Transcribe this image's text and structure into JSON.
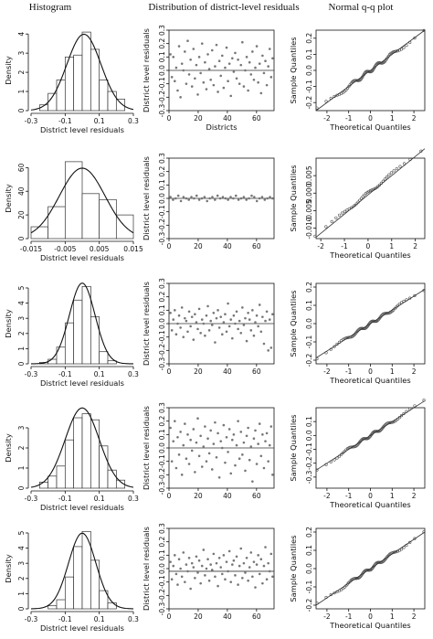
{
  "headers": [
    "Histogram",
    "Distribution of district-level residuals",
    "Normal q-q plot"
  ],
  "chart_data": [
    {
      "type": "bar",
      "panel": "histogram",
      "row": 1,
      "xlabel": "District level residuals",
      "ylabel": "Density",
      "xlim": [
        -0.3,
        0.3
      ],
      "ylim": [
        0,
        4.2
      ],
      "xticks": [
        -0.3,
        -0.1,
        0.1,
        0.3
      ],
      "xtick_labels": [
        "-0.3",
        "-0.1",
        "0.1",
        "0.3"
      ],
      "yticks": [
        0,
        1,
        2,
        3,
        4
      ],
      "bin_edges": [
        -0.25,
        -0.2,
        -0.15,
        -0.1,
        -0.05,
        0.0,
        0.05,
        0.1,
        0.15,
        0.2,
        0.25
      ],
      "values": [
        0.3,
        0.9,
        1.6,
        2.8,
        2.9,
        4.1,
        3.2,
        1.6,
        1.0,
        0.6
      ],
      "curve": {
        "mean": 0.01,
        "sd": 0.1
      }
    },
    {
      "type": "scatter",
      "panel": "residuals",
      "row": 1,
      "xlabel": "Districts",
      "ylabel": "District level residuals",
      "xlim": [
        0,
        72
      ],
      "ylim": [
        -0.3,
        0.3
      ],
      "xticks": [
        0,
        20,
        40,
        60
      ],
      "yticks": [
        -0.3,
        -0.2,
        -0.1,
        0.0,
        0.1,
        0.2,
        0.3
      ],
      "ytick_labels": [
        "-0.3",
        "-0.2",
        "-0.1",
        "0.0",
        "0.1",
        "0.2",
        "0.3"
      ],
      "hline": 0.0,
      "y": [
        0.12,
        -0.05,
        0.1,
        -0.08,
        0.02,
        -0.15,
        0.18,
        -0.2,
        0.05,
        0.0,
        0.14,
        -0.1,
        0.22,
        -0.03,
        0.08,
        -0.12,
        0.16,
        -0.06,
        0.04,
        -0.18,
        0.1,
        -0.02,
        0.2,
        -0.09,
        0.06,
        -0.14,
        0.12,
        0.01,
        -0.07,
        0.15,
        -0.11,
        0.03,
        0.19,
        -0.16,
        0.07,
        -0.04,
        0.11,
        -0.13,
        0.02,
        0.17,
        -0.08,
        0.05,
        -0.19,
        0.09,
        -0.01,
        0.13,
        -0.06,
        0.08,
        -0.1,
        0.04,
        0.21,
        -0.12,
        0.0,
        0.1,
        -0.15,
        0.06,
        -0.03,
        0.14,
        -0.07,
        0.02,
        0.18,
        -0.09,
        0.05,
        -0.17,
        0.11,
        -0.02,
        0.07,
        -0.11,
        0.03,
        0.16,
        -0.05,
        0.09
      ]
    },
    {
      "type": "scatter",
      "panel": "qq",
      "row": 1,
      "xlabel": "Theoretical Quantiles",
      "ylabel": "Sample Quantiles",
      "xlim": [
        -2.5,
        2.5
      ],
      "ylim": [
        -0.25,
        0.25
      ],
      "xticks": [
        -2,
        -1,
        0,
        1,
        2
      ],
      "yticks": [
        -0.2,
        -0.1,
        0.0,
        0.1,
        0.2
      ],
      "ytick_labels": [
        "-0.2",
        "-0.1",
        "0.0",
        "0.1",
        "0.2"
      ],
      "points": {
        "n": 72,
        "mean": 0.0,
        "sd": 0.1,
        "jitter": 0.012
      },
      "line": {
        "intercept": 0.0,
        "slope": 0.1
      }
    },
    {
      "type": "bar",
      "panel": "histogram",
      "row": 2,
      "xlabel": "District level residuals",
      "ylabel": "Density",
      "xlim": [
        -0.015,
        0.015
      ],
      "ylim": [
        0,
        68
      ],
      "xticks": [
        -0.015,
        -0.005,
        0.005,
        0.015
      ],
      "xtick_labels": [
        "-0.015",
        "-0.005",
        "0.005",
        "0.015"
      ],
      "yticks": [
        0,
        20,
        40,
        60
      ],
      "bin_edges": [
        -0.015,
        -0.01,
        -0.005,
        0.0,
        0.005,
        0.01,
        0.015
      ],
      "values": [
        10,
        27,
        65,
        38,
        33,
        20
      ],
      "curve": {
        "mean": 0.0,
        "sd": 0.0067
      }
    },
    {
      "type": "scatter",
      "panel": "residuals",
      "row": 2,
      "xlabel": "",
      "ylabel": "District level residuals",
      "xlim": [
        0,
        72
      ],
      "ylim": [
        -0.3,
        0.3
      ],
      "xticks": [
        0,
        20,
        40,
        60
      ],
      "yticks": [
        -0.3,
        -0.2,
        -0.1,
        0.0,
        0.1,
        0.2,
        0.3
      ],
      "ytick_labels": [
        "-0.3",
        "-0.2",
        "-0.1",
        "0.0",
        "0.1",
        "0.2",
        "0.3"
      ],
      "hline": 0.0,
      "y": [
        0.01,
        -0.01,
        0.0,
        0.02,
        -0.02,
        0.01,
        0.0,
        -0.01,
        0.01,
        0.0,
        0.02,
        -0.01,
        0.0,
        0.01,
        -0.02,
        0.0,
        0.01,
        -0.01,
        0.02,
        0.0,
        0.01,
        0.0,
        -0.01,
        0.01,
        0.0,
        0.02,
        -0.01,
        0.0,
        0.01,
        -0.01,
        0.0,
        0.02,
        0.01,
        -0.02,
        0.0,
        0.01,
        -0.01,
        0.0,
        0.01,
        0.0
      ]
    },
    {
      "type": "scatter",
      "panel": "qq",
      "row": 2,
      "xlabel": "Theoretical Quantiles",
      "ylabel": "Sample Quantiles",
      "xlim": [
        -2.2,
        2.4
      ],
      "ylim": [
        -0.013,
        0.01
      ],
      "xticks": [
        -2,
        -1,
        0,
        1,
        2
      ],
      "yticks": [
        -0.01,
        -0.005,
        0.0,
        0.005
      ],
      "ytick_labels": [
        "-0.010",
        "-0.005",
        "0.000",
        "0.005"
      ],
      "points": {
        "n": 40,
        "mean": 0.0,
        "sd": 0.0055,
        "jitter": 0.0004
      },
      "line": {
        "intercept": -0.0005,
        "slope": 0.0055
      }
    },
    {
      "type": "bar",
      "panel": "histogram",
      "row": 3,
      "xlabel": "District level residuals",
      "ylabel": "Density",
      "xlim": [
        -0.3,
        0.3
      ],
      "ylim": [
        0,
        5.3
      ],
      "xticks": [
        -0.3,
        -0.1,
        0.1,
        0.3
      ],
      "xtick_labels": [
        "-0.3",
        "-0.1",
        "0.1",
        "0.3"
      ],
      "yticks": [
        0,
        1,
        2,
        3,
        4,
        5
      ],
      "bin_edges": [
        -0.25,
        -0.2,
        -0.15,
        -0.1,
        -0.05,
        0.0,
        0.05,
        0.1,
        0.15,
        0.2
      ],
      "values": [
        0.1,
        0.3,
        1.1,
        2.7,
        4.2,
        5.1,
        3.1,
        0.8,
        0.2
      ],
      "curve": {
        "mean": 0.0,
        "sd": 0.075
      }
    },
    {
      "type": "scatter",
      "panel": "residuals",
      "row": 3,
      "xlabel": "",
      "ylabel": "District level residuals",
      "xlim": [
        0,
        72
      ],
      "ylim": [
        -0.3,
        0.3
      ],
      "xticks": [
        0,
        20,
        40,
        60
      ],
      "yticks": [
        -0.3,
        -0.2,
        -0.1,
        0.0,
        0.1,
        0.2,
        0.3
      ],
      "ytick_labels": [
        "-0.3",
        "-0.2",
        "-0.1",
        "0.0",
        "0.1",
        "0.2",
        "0.3"
      ],
      "hline": 0.0,
      "y": [
        0.08,
        -0.05,
        0.03,
        0.1,
        -0.08,
        0.0,
        0.06,
        -0.03,
        0.12,
        -0.1,
        0.04,
        0.02,
        -0.06,
        0.09,
        -0.02,
        0.05,
        -0.12,
        0.07,
        0.01,
        -0.04,
        0.11,
        -0.07,
        0.03,
        0.0,
        -0.09,
        0.06,
        0.13,
        -0.05,
        0.02,
        -0.01,
        0.08,
        -0.14,
        0.04,
        0.1,
        -0.03,
        0.05,
        -0.08,
        0.01,
        0.07,
        -0.06,
        0.15,
        -0.02,
        0.03,
        -0.11,
        0.06,
        0.0,
        0.09,
        -0.04,
        0.02,
        -0.07,
        0.12,
        -0.01,
        0.04,
        -0.13,
        0.08,
        0.03,
        -0.05,
        0.1,
        -0.09,
        0.01,
        0.06,
        -0.02,
        0.14,
        -0.06,
        0.05,
        -0.15,
        0.02,
        0.09,
        -0.2,
        0.03,
        -0.18,
        0.07
      ]
    },
    {
      "type": "scatter",
      "panel": "qq",
      "row": 3,
      "xlabel": "Theoretical Quantiles",
      "ylabel": "Sample Quantiles",
      "xlim": [
        -2.5,
        2.5
      ],
      "ylim": [
        -0.22,
        0.22
      ],
      "xticks": [
        -2,
        -1,
        0,
        1,
        2
      ],
      "yticks": [
        -0.2,
        -0.1,
        0.0,
        0.1,
        0.2
      ],
      "ytick_labels": [
        "-0.2",
        "-0.1",
        "0.0",
        "0.1",
        "0.2"
      ],
      "points": {
        "n": 72,
        "mean": 0.0,
        "sd": 0.075,
        "jitter": 0.008
      },
      "line": {
        "intercept": 0.0,
        "slope": 0.075
      }
    },
    {
      "type": "bar",
      "panel": "histogram",
      "row": 4,
      "xlabel": "District level residuals",
      "ylabel": "Density",
      "xlim": [
        -0.3,
        0.3
      ],
      "ylim": [
        0,
        4.0
      ],
      "xticks": [
        -0.3,
        -0.1,
        0.1,
        0.3
      ],
      "xtick_labels": [
        "-0.3",
        "-0.1",
        "0.1",
        "0.3"
      ],
      "yticks": [
        0,
        1,
        2,
        3
      ],
      "bin_edges": [
        -0.25,
        -0.2,
        -0.15,
        -0.1,
        -0.05,
        0.0,
        0.05,
        0.1,
        0.15,
        0.2,
        0.25
      ],
      "values": [
        0.3,
        0.6,
        1.1,
        2.4,
        3.5,
        3.7,
        3.4,
        2.1,
        0.9,
        0.4
      ],
      "curve": {
        "mean": 0.0,
        "sd": 0.1
      }
    },
    {
      "type": "scatter",
      "panel": "residuals",
      "row": 4,
      "xlabel": "",
      "ylabel": "District level residuals",
      "xlim": [
        0,
        72
      ],
      "ylim": [
        -0.3,
        0.3
      ],
      "xticks": [
        0,
        20,
        40,
        60
      ],
      "yticks": [
        -0.3,
        -0.2,
        -0.1,
        0.0,
        0.1,
        0.2,
        0.3
      ],
      "ytick_labels": [
        "-0.3",
        "-0.2",
        "-0.1",
        "0.0",
        "0.1",
        "0.2",
        "0.3"
      ],
      "hline": 0.0,
      "y": [
        0.15,
        -0.1,
        0.05,
        0.2,
        -0.15,
        0.08,
        -0.05,
        0.12,
        -0.2,
        0.02,
        0.18,
        -0.08,
        0.1,
        -0.12,
        0.06,
        -0.02,
        0.14,
        -0.18,
        0.04,
        0.22,
        -0.06,
        0.09,
        -0.14,
        0.01,
        0.16,
        -0.1,
        0.07,
        -0.04,
        0.13,
        -0.16,
        0.03,
        0.19,
        -0.07,
        0.11,
        -0.22,
        0.05,
        0.0,
        0.17,
        -0.11,
        0.08,
        -0.03,
        0.14,
        -0.19,
        0.06,
        0.1,
        -0.13,
        0.02,
        0.2,
        -0.08,
        0.12,
        -0.05,
        0.04,
        -0.17,
        0.09,
        0.15,
        -0.09,
        0.01,
        -0.25,
        0.07,
        0.13,
        -0.12,
        0.03,
        0.18,
        -0.06,
        0.1,
        -0.15,
        0.05,
        0.11,
        -0.1,
        0.02,
        0.16,
        -0.2
      ]
    },
    {
      "type": "scatter",
      "panel": "qq",
      "row": 4,
      "xlabel": "Theoretical Quantiles",
      "ylabel": "Sample Quantiles",
      "xlim": [
        -2.5,
        2.5
      ],
      "ylim": [
        -0.38,
        0.2
      ],
      "xticks": [
        -2,
        -1,
        0,
        1,
        2
      ],
      "yticks": [
        -0.3,
        -0.2,
        -0.1,
        0.0,
        0.1
      ],
      "ytick_labels": [
        "-0.3",
        "-0.2",
        "-0.1",
        "0.0",
        "0.1"
      ],
      "points": {
        "n": 72,
        "mean": 0.0,
        "sd": 0.1,
        "jitter": 0.01
      },
      "line": {
        "intercept": 0.0,
        "slope": 0.1
      }
    },
    {
      "type": "bar",
      "panel": "histogram",
      "row": 5,
      "xlabel": "District level residuals",
      "ylabel": "Density",
      "xlim": [
        -0.3,
        0.3
      ],
      "ylim": [
        0,
        5.3
      ],
      "xticks": [
        -0.3,
        -0.1,
        0.1,
        0.3
      ],
      "xtick_labels": [
        "-0.3",
        "-0.1",
        "0.1",
        "0.3"
      ],
      "yticks": [
        0,
        1,
        2,
        3,
        4,
        5
      ],
      "bin_edges": [
        -0.2,
        -0.15,
        -0.1,
        -0.05,
        0.0,
        0.05,
        0.1,
        0.15,
        0.2
      ],
      "values": [
        0.2,
        0.6,
        2.1,
        4.1,
        5.1,
        3.2,
        1.2,
        0.4
      ],
      "curve": {
        "mean": 0.0,
        "sd": 0.08
      }
    },
    {
      "type": "scatter",
      "panel": "residuals",
      "row": 5,
      "xlabel": "",
      "ylabel": "District level residuals",
      "xlim": [
        0,
        72
      ],
      "ylim": [
        -0.3,
        0.3
      ],
      "xticks": [
        0,
        20,
        40,
        60
      ],
      "yticks": [
        -0.3,
        -0.2,
        -0.1,
        0.0,
        0.1,
        0.2,
        0.3
      ],
      "ytick_labels": [
        "-0.3",
        "-0.2",
        "-0.1",
        "0.0",
        "0.1",
        "0.2",
        "0.3"
      ],
      "hline": -0.02,
      "y": [
        0.05,
        -0.08,
        0.02,
        0.1,
        -0.04,
        -0.12,
        0.07,
        0.0,
        -0.06,
        0.12,
        -0.1,
        0.03,
        -0.02,
        0.08,
        -0.15,
        0.04,
        0.01,
        -0.07,
        0.09,
        -0.03,
        0.06,
        -0.11,
        0.02,
        0.14,
        -0.05,
        0.0,
        0.07,
        -0.09,
        0.03,
        -0.01,
        0.11,
        -0.06,
        0.04,
        -0.13,
        0.08,
        0.01,
        -0.04,
        0.1,
        -0.08,
        0.05,
        -0.02,
        0.13,
        -0.1,
        0.03,
        0.06,
        -0.05,
        0.09,
        -0.12,
        0.02,
        0.15,
        -0.07,
        0.04,
        -0.03,
        0.08,
        -0.09,
        0.01,
        0.12,
        -0.06,
        0.05,
        -0.14,
        0.03,
        0.1,
        -0.04,
        0.07,
        -0.11,
        0.02,
        0.16,
        -0.08,
        0.04,
        -0.02,
        0.11,
        -0.06
      ]
    },
    {
      "type": "scatter",
      "panel": "qq",
      "row": 5,
      "xlabel": "Theoretical Quantiles",
      "ylabel": "Sample Quantiles",
      "xlim": [
        -2.5,
        2.5
      ],
      "ylim": [
        -0.22,
        0.22
      ],
      "xticks": [
        -2,
        -1,
        0,
        1,
        2
      ],
      "yticks": [
        -0.2,
        -0.1,
        0.0,
        0.1,
        0.2
      ],
      "ytick_labels": [
        "-0.2",
        "-0.1",
        "0.0",
        "0.1",
        "0.2"
      ],
      "points": {
        "n": 72,
        "mean": 0.0,
        "sd": 0.08,
        "jitter": 0.008
      },
      "line": {
        "intercept": 0.0,
        "slope": 0.08
      }
    }
  ]
}
